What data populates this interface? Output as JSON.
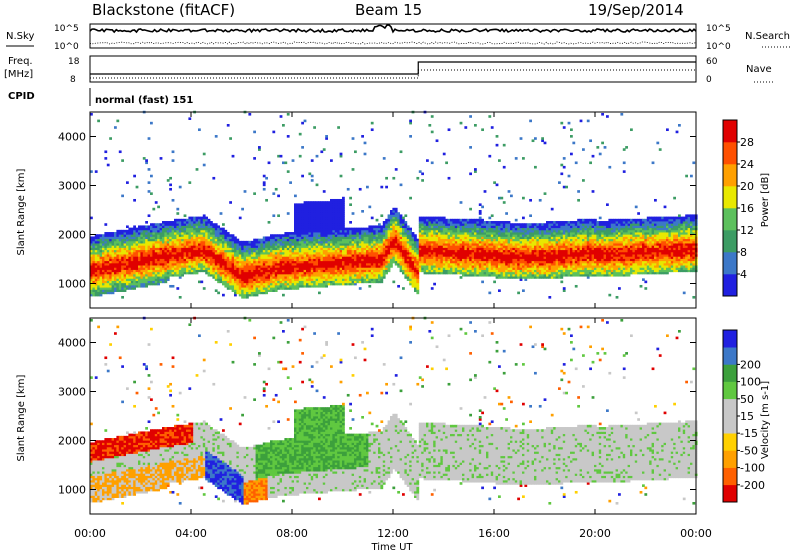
{
  "header": {
    "title": "Blackstone (fitACF)",
    "beam": "Beam 15",
    "date": "19/Sep/2014"
  },
  "nsky_panel": {
    "left_label": "N.Sky",
    "right_label": "N.Search",
    "ticks_left": [
      "10^5",
      "10^0"
    ],
    "ticks_right": [
      "10^5",
      "10^0"
    ]
  },
  "freq_panel": {
    "left_label_top": "Freq.",
    "left_label_unit": "[MHz]",
    "right_label": "Nave",
    "ticks_left": [
      "18",
      "8"
    ],
    "ticks_right": [
      "60",
      "0"
    ],
    "step_hour": 13.0
  },
  "cpid_panel": {
    "label": "CPID",
    "mode_text": "normal (fast) 151"
  },
  "colors": {
    "power": [
      "#2020e0",
      "#3c78c8",
      "#3c9c64",
      "#5cc05c",
      "#e8e800",
      "#ffa000",
      "#ff5000",
      "#e00000"
    ],
    "velocity": [
      "#e00000",
      "#ff6000",
      "#ffa000",
      "#ffd000",
      "#c8c8c8",
      "#c8c8c8",
      "#60c840",
      "#3ca03c",
      "#3c78c8",
      "#2020e0"
    ]
  },
  "chart_data": [
    {
      "type": "heatmap",
      "name": "power",
      "ylabel": "Slant Range [km]",
      "yticks": [
        "1000",
        "2000",
        "3000",
        "4000"
      ],
      "ylim": [
        500,
        4500
      ],
      "xlim": [
        0,
        24
      ],
      "colorbar": {
        "label": "Power [dB]",
        "ticks": [
          "4",
          "8",
          "12",
          "16",
          "20",
          "24",
          "28"
        ],
        "range": [
          0,
          32
        ]
      }
    },
    {
      "type": "heatmap",
      "name": "velocity",
      "ylabel": "Slant Range [km]",
      "yticks": [
        "1000",
        "2000",
        "3000",
        "4000"
      ],
      "ylim": [
        500,
        4500
      ],
      "xlim": [
        0,
        24
      ],
      "colorbar": {
        "label": "Velocity [m s-1]",
        "ticks": [
          "-200",
          "-100",
          "-50",
          "-15",
          "15",
          "50",
          "100",
          "200"
        ]
      }
    }
  ],
  "xaxis": {
    "label": "Time UT",
    "ticks": [
      "00:00",
      "04:00",
      "08:00",
      "12:00",
      "16:00",
      "20:00",
      "00:00"
    ]
  }
}
